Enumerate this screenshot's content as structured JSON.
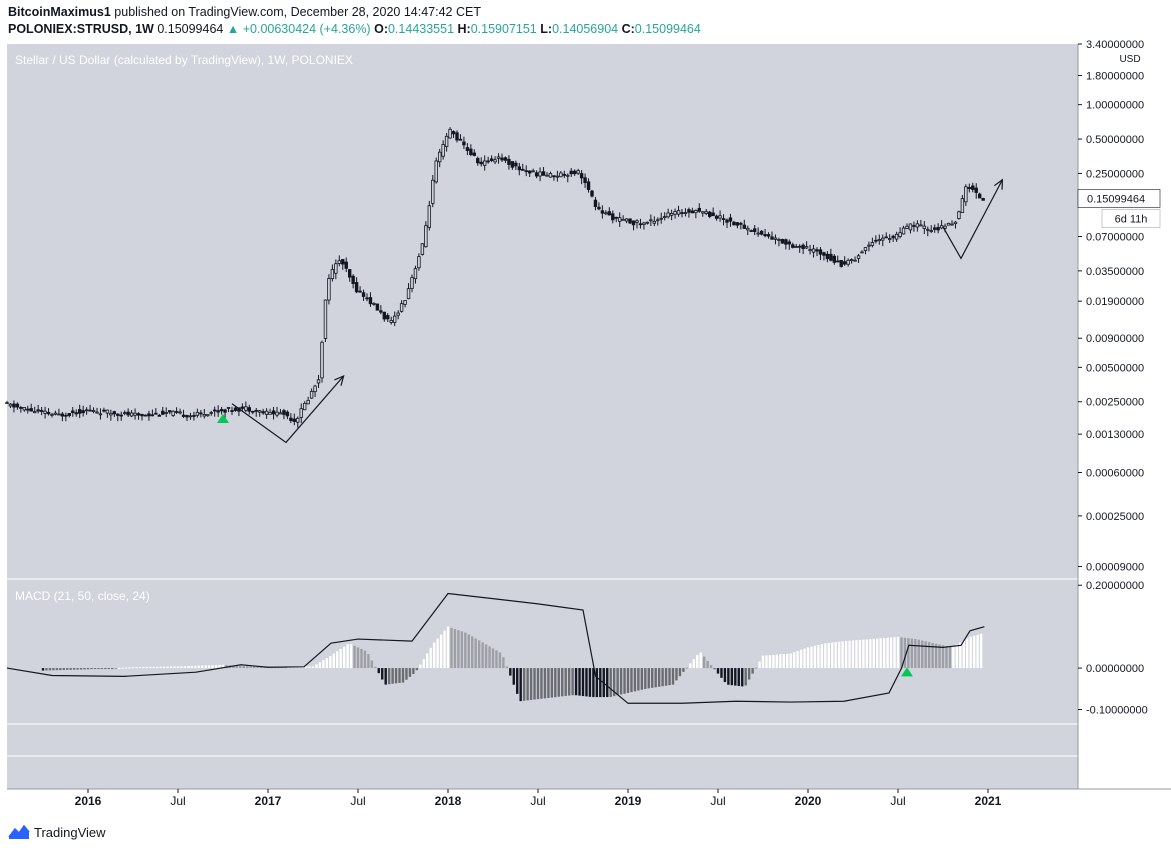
{
  "header": {
    "author": "BitcoinMaximus1",
    "published_text": "published on TradingView.com, December 28, 2020 14:47:42 CET",
    "symbol": "POLONIEX:STRUSD, 1W",
    "price": "0.15099464",
    "change": "+0.00630424 (+4.36%)",
    "o_label": "O:",
    "o_value": "0.14433551",
    "h_label": "H:",
    "h_value": "0.15907151",
    "l_label": "L:",
    "l_value": "0.14056904",
    "c_label": "C:",
    "c_value": "0.15099464"
  },
  "brand": {
    "name": "TradingView"
  },
  "colors": {
    "pane_bg": "#d1d4dc",
    "candle": "#131722",
    "signal": "#00c853",
    "accent_up": "#26a69a"
  },
  "chart_data": [
    {
      "type": "candlestick",
      "title": "Stellar / US Dollar (calculated by TradingView), 1W, POLONIEX",
      "y_unit": "USD",
      "y_scale": "log",
      "ylim": [
        7e-05,
        3.4
      ],
      "y_ticks": [
        "3.40000000",
        "1.80000000",
        "1.00000000",
        "0.50000000",
        "0.25000000",
        "0.07000000",
        "0.03500000",
        "0.01900000",
        "0.00900000",
        "0.00500000",
        "0.00250000",
        "0.00130000",
        "0.00060000",
        "0.00025000",
        "0.00009000"
      ],
      "x_ticks": [
        "2016",
        "Jul",
        "2017",
        "Jul",
        "2018",
        "Jul",
        "2019",
        "Jul",
        "2020",
        "Jul",
        "2021"
      ],
      "last_price": "0.15099464",
      "countdown": "6d 11h",
      "series": [
        {
          "points": [
            [
              2015.55,
              0.0024
            ],
            [
              2015.7,
              0.0021
            ],
            [
              2015.85,
              0.0019
            ],
            [
              2016.0,
              0.0021
            ],
            [
              2016.15,
              0.002
            ],
            [
              2016.3,
              0.0019
            ],
            [
              2016.45,
              0.002
            ],
            [
              2016.6,
              0.0019
            ],
            [
              2016.75,
              0.0021
            ],
            [
              2016.9,
              0.0022
            ],
            [
              2017.0,
              0.002
            ],
            [
              2017.1,
              0.002
            ],
            [
              2017.17,
              0.0017
            ],
            [
              2017.25,
              0.0028
            ],
            [
              2017.3,
              0.004
            ],
            [
              2017.35,
              0.03
            ],
            [
              2017.42,
              0.045
            ],
            [
              2017.5,
              0.025
            ],
            [
              2017.6,
              0.018
            ],
            [
              2017.7,
              0.012
            ],
            [
              2017.78,
              0.02
            ],
            [
              2017.88,
              0.06
            ],
            [
              2017.95,
              0.3
            ],
            [
              2018.03,
              0.6
            ],
            [
              2018.1,
              0.45
            ],
            [
              2018.2,
              0.3
            ],
            [
              2018.3,
              0.35
            ],
            [
              2018.4,
              0.28
            ],
            [
              2018.5,
              0.25
            ],
            [
              2018.6,
              0.24
            ],
            [
              2018.75,
              0.26
            ],
            [
              2018.85,
              0.12
            ],
            [
              2018.95,
              0.1
            ],
            [
              2019.1,
              0.09
            ],
            [
              2019.25,
              0.11
            ],
            [
              2019.4,
              0.12
            ],
            [
              2019.55,
              0.1
            ],
            [
              2019.7,
              0.08
            ],
            [
              2019.85,
              0.065
            ],
            [
              2019.95,
              0.058
            ],
            [
              2020.1,
              0.05
            ],
            [
              2020.2,
              0.04
            ],
            [
              2020.28,
              0.045
            ],
            [
              2020.38,
              0.065
            ],
            [
              2020.5,
              0.07
            ],
            [
              2020.6,
              0.09
            ],
            [
              2020.7,
              0.08
            ],
            [
              2020.78,
              0.085
            ],
            [
              2020.85,
              0.1
            ],
            [
              2020.9,
              0.2
            ],
            [
              2020.95,
              0.17
            ],
            [
              2020.98,
              0.151
            ]
          ]
        }
      ],
      "signals": [
        [
          2016.75,
          0.0018
        ]
      ]
    },
    {
      "type": "bar",
      "title": "MACD (21, 50, close, 24)",
      "ylim": [
        -0.135,
        0.215
      ],
      "y_ticks": [
        "0.20000000",
        "0.00000000",
        "-0.10000000"
      ],
      "histogram": [
        [
          2015.55,
          -0.008
        ],
        [
          2015.75,
          -0.006
        ],
        [
          2016.0,
          -0.003
        ],
        [
          2016.25,
          0.002
        ],
        [
          2016.5,
          0.004
        ],
        [
          2016.75,
          0.008
        ],
        [
          2016.85,
          0.005
        ],
        [
          2017.0,
          0.004
        ],
        [
          2017.1,
          0.003
        ],
        [
          2017.25,
          0.004
        ],
        [
          2017.35,
          0.03
        ],
        [
          2017.45,
          0.06
        ],
        [
          2017.55,
          0.04
        ],
        [
          2017.65,
          -0.04
        ],
        [
          2017.75,
          -0.035
        ],
        [
          2017.82,
          -0.01
        ],
        [
          2017.92,
          0.06
        ],
        [
          2018.0,
          0.1
        ],
        [
          2018.1,
          0.085
        ],
        [
          2018.2,
          0.06
        ],
        [
          2018.3,
          0.035
        ],
        [
          2018.4,
          -0.08
        ],
        [
          2018.5,
          -0.075
        ],
        [
          2018.6,
          -0.07
        ],
        [
          2018.7,
          -0.065
        ],
        [
          2018.8,
          -0.07
        ],
        [
          2018.9,
          -0.07
        ],
        [
          2019.0,
          -0.06
        ],
        [
          2019.1,
          -0.05
        ],
        [
          2019.25,
          -0.04
        ],
        [
          2019.4,
          0.04
        ],
        [
          2019.55,
          -0.04
        ],
        [
          2019.65,
          -0.045
        ],
        [
          2019.75,
          0.03
        ],
        [
          2019.9,
          0.035
        ],
        [
          2020.0,
          0.05
        ],
        [
          2020.1,
          0.06
        ],
        [
          2020.2,
          0.065
        ],
        [
          2020.35,
          0.07
        ],
        [
          2020.5,
          0.075
        ],
        [
          2020.6,
          0.07
        ],
        [
          2020.7,
          0.06
        ],
        [
          2020.8,
          0.05
        ],
        [
          2020.9,
          0.075
        ],
        [
          2020.98,
          0.085
        ]
      ],
      "signal_line": [
        [
          2015.55,
          0.0
        ],
        [
          2015.8,
          -0.018
        ],
        [
          2016.2,
          -0.02
        ],
        [
          2016.6,
          -0.01
        ],
        [
          2016.85,
          0.008
        ],
        [
          2017.0,
          0.002
        ],
        [
          2017.2,
          0.003
        ],
        [
          2017.35,
          0.06
        ],
        [
          2017.5,
          0.07
        ],
        [
          2017.8,
          0.065
        ],
        [
          2018.0,
          0.18
        ],
        [
          2018.2,
          0.17
        ],
        [
          2018.5,
          0.155
        ],
        [
          2018.75,
          0.14
        ],
        [
          2018.82,
          -0.02
        ],
        [
          2019.0,
          -0.085
        ],
        [
          2019.3,
          -0.085
        ],
        [
          2019.6,
          -0.08
        ],
        [
          2019.9,
          -0.082
        ],
        [
          2020.2,
          -0.08
        ],
        [
          2020.45,
          -0.06
        ],
        [
          2020.52,
          0.0
        ],
        [
          2020.56,
          0.055
        ],
        [
          2020.75,
          0.05
        ],
        [
          2020.85,
          0.055
        ],
        [
          2020.9,
          0.09
        ],
        [
          2020.98,
          0.1
        ]
      ],
      "signals": [
        [
          2020.55,
          -0.008
        ]
      ]
    }
  ]
}
